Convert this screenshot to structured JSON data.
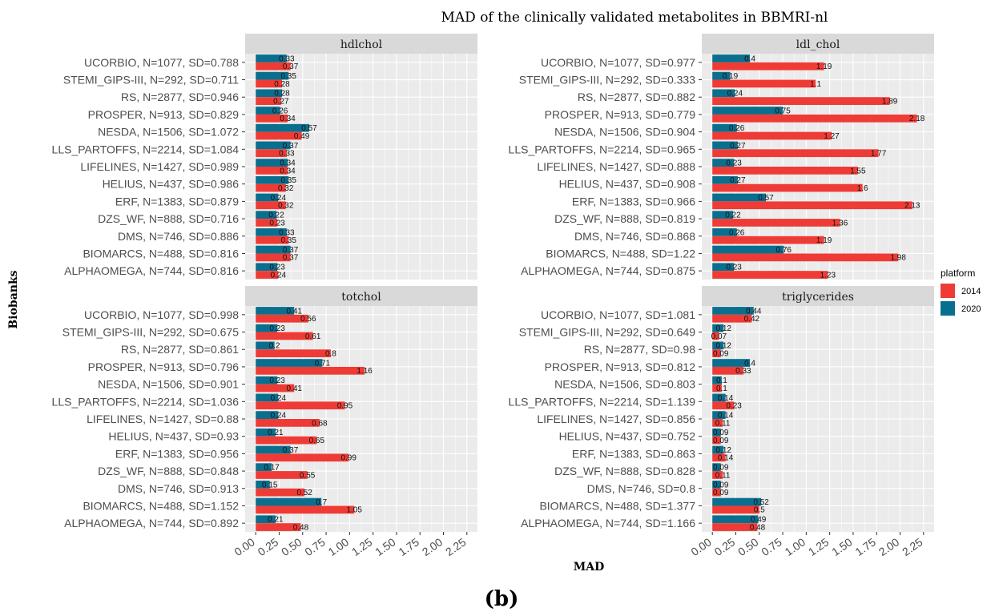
{
  "title": "MAD of the clinically validated metabolites in BBMRI-nl",
  "xlabel": "MAD",
  "ylabel": "Biobanks",
  "caption": "(b)",
  "legend": {
    "title": "platform",
    "items": [
      {
        "label": "2014",
        "color": "#ef3b36"
      },
      {
        "label": "2020",
        "color": "#0a6f8f"
      }
    ]
  },
  "colors": {
    "panel_bg": "#ebebeb",
    "strip_bg": "#d9d9d9",
    "grid": "#ffffff",
    "series_2014": "#ef3b36",
    "series_2020": "#0a6f8f"
  },
  "chart_data": [
    {
      "type": "bar",
      "title": "hdlchol",
      "xlim": [
        0,
        2.25
      ],
      "ticks": [
        "0.00",
        "0.25",
        "0.50",
        "0.75",
        "1.00",
        "1.25",
        "1.50",
        "1.75",
        "2.00",
        "2.25"
      ],
      "categories": [
        "UCORBIO, N=1077, SD=0.788",
        "STEMI_GIPS-III, N=292, SD=0.711",
        "RS, N=2877, SD=0.946",
        "PROSPER, N=913, SD=0.829",
        "NESDA, N=1506, SD=1.072",
        "LLS_PARTOFFS, N=2214, SD=1.084",
        "LIFELINES, N=1427, SD=0.989",
        "HELIUS, N=437, SD=0.986",
        "ERF, N=1383, SD=0.879",
        "DZS_WF, N=888, SD=0.716",
        "DMS, N=746, SD=0.886",
        "BIOMARCS, N=488, SD=0.816",
        "ALPHAOMEGA, N=744, SD=0.816"
      ],
      "series": [
        {
          "name": "2020",
          "values": [
            0.33,
            0.35,
            0.28,
            0.26,
            0.57,
            0.37,
            0.34,
            0.35,
            0.24,
            0.22,
            0.33,
            0.37,
            0.23
          ],
          "labels": [
            "0.33",
            "0.35",
            "0.28",
            "0.26",
            "0.57",
            "0.37",
            "0.34",
            "0.35",
            "0.24",
            "0.22",
            "0.33",
            "0.37",
            "0.23"
          ]
        },
        {
          "name": "2014",
          "values": [
            0.37,
            0.28,
            0.27,
            0.34,
            0.49,
            0.33,
            0.34,
            0.32,
            0.32,
            0.23,
            0.35,
            0.37,
            0.24
          ],
          "labels": [
            "0.37",
            "0.28",
            "0.27",
            "0.34",
            "0.49",
            "0.33",
            "0.34",
            "0.32",
            "0.32",
            "0.23",
            "0.35",
            "0.37",
            "0.24"
          ]
        }
      ]
    },
    {
      "type": "bar",
      "title": "ldl_chol",
      "xlim": [
        0,
        2.25
      ],
      "ticks": [
        "0.00",
        "0.25",
        "0.50",
        "0.75",
        "1.00",
        "1.25",
        "1.50",
        "1.75",
        "2.00",
        "2.25"
      ],
      "categories": [
        "UCORBIO, N=1077, SD=0.977",
        "STEMI_GIPS-III, N=292, SD=0.333",
        "RS, N=2877, SD=0.882",
        "PROSPER, N=913, SD=0.779",
        "NESDA, N=1506, SD=0.904",
        "LLS_PARTOFFS, N=2214, SD=0.965",
        "LIFELINES, N=1427, SD=0.888",
        "HELIUS, N=437, SD=0.908",
        "ERF, N=1383, SD=0.966",
        "DZS_WF, N=888, SD=0.819",
        "DMS, N=746, SD=0.868",
        "BIOMARCS, N=488, SD=1.22",
        "ALPHAOMEGA, N=744, SD=0.875"
      ],
      "series": [
        {
          "name": "2020",
          "values": [
            0.4,
            0.19,
            0.24,
            0.75,
            0.26,
            0.27,
            0.23,
            0.27,
            0.57,
            0.22,
            0.26,
            0.76,
            0.23
          ],
          "labels": [
            "0.4",
            "0.19",
            "0.24",
            "0.75",
            "0.26",
            "0.27",
            "0.23",
            "0.27",
            "0.57",
            "0.22",
            "0.26",
            "0.76",
            "0.23"
          ]
        },
        {
          "name": "2014",
          "values": [
            1.19,
            1.1,
            1.89,
            2.18,
            1.27,
            1.77,
            1.55,
            1.6,
            2.13,
            1.36,
            1.19,
            1.98,
            1.23
          ],
          "labels": [
            "1.19",
            "1.1",
            "1.89",
            "2.18",
            "1.27",
            "1.77",
            "1.55",
            "1.6",
            "2.13",
            "1.36",
            "1.19",
            "1.98",
            "1.23"
          ]
        }
      ]
    },
    {
      "type": "bar",
      "title": "totchol",
      "xlim": [
        0,
        2.25
      ],
      "ticks": [
        "0.00",
        "0.25",
        "0.50",
        "0.75",
        "1.00",
        "1.25",
        "1.50",
        "1.75",
        "2.00",
        "2.25"
      ],
      "categories": [
        "UCORBIO, N=1077, SD=0.998",
        "STEMI_GIPS-III, N=292, SD=0.675",
        "RS, N=2877, SD=0.861",
        "PROSPER, N=913, SD=0.796",
        "NESDA, N=1506, SD=0.901",
        "LLS_PARTOFFS, N=2214, SD=1.036",
        "LIFELINES, N=1427, SD=0.88",
        "HELIUS, N=437, SD=0.93",
        "ERF, N=1383, SD=0.956",
        "DZS_WF, N=888, SD=0.848",
        "DMS, N=746, SD=0.913",
        "BIOMARCS, N=488, SD=1.152",
        "ALPHAOMEGA, N=744, SD=0.892"
      ],
      "series": [
        {
          "name": "2020",
          "values": [
            0.41,
            0.23,
            0.2,
            0.71,
            0.23,
            0.24,
            0.24,
            0.21,
            0.37,
            0.17,
            0.15,
            0.7,
            0.21
          ],
          "labels": [
            "0.41",
            "0.23",
            "0.2",
            "0.71",
            "0.23",
            "0.24",
            "0.24",
            "0.21",
            "0.37",
            "0.17",
            "0.15",
            "0.7",
            "0.21"
          ]
        },
        {
          "name": "2014",
          "values": [
            0.56,
            0.61,
            0.8,
            1.16,
            0.41,
            0.95,
            0.68,
            0.65,
            0.99,
            0.55,
            0.52,
            1.05,
            0.48
          ],
          "labels": [
            "0.56",
            "0.61",
            "0.8",
            "1.16",
            "0.41",
            "0.95",
            "0.68",
            "0.65",
            "0.99",
            "0.55",
            "0.52",
            "1.05",
            "0.48"
          ]
        }
      ]
    },
    {
      "type": "bar",
      "title": "triglycerides",
      "xlim": [
        0,
        2.25
      ],
      "ticks": [
        "0.00",
        "0.25",
        "0.50",
        "0.75",
        "1.00",
        "1.25",
        "1.50",
        "1.75",
        "2.00",
        "2.25"
      ],
      "categories": [
        "UCORBIO, N=1077, SD=1.081",
        "STEMI_GIPS-III, N=292, SD=0.649",
        "RS, N=2877, SD=0.98",
        "PROSPER, N=913, SD=0.812",
        "NESDA, N=1506, SD=0.803",
        "LLS_PARTOFFS, N=2214, SD=1.139",
        "LIFELINES, N=1427, SD=0.856",
        "HELIUS, N=437, SD=0.752",
        "ERF, N=1383, SD=0.863",
        "DZS_WF, N=888, SD=0.828",
        "DMS, N=746, SD=0.8",
        "BIOMARCS, N=488, SD=1.377",
        "ALPHAOMEGA, N=744, SD=1.166"
      ],
      "series": [
        {
          "name": "2020",
          "values": [
            0.44,
            0.12,
            0.12,
            0.4,
            0.1,
            0.14,
            0.14,
            0.09,
            0.12,
            0.09,
            0.09,
            0.52,
            0.49
          ],
          "labels": [
            "0.44",
            "0.12",
            "0.12",
            "0.4",
            "0.1",
            "0.14",
            "0.14",
            "0.09",
            "0.12",
            "0.09",
            "0.09",
            "0.52",
            "0.49"
          ]
        },
        {
          "name": "2014",
          "values": [
            0.42,
            0.07,
            0.09,
            0.33,
            0.1,
            0.23,
            0.11,
            0.09,
            0.14,
            0.11,
            0.09,
            0.5,
            0.48
          ],
          "labels": [
            "0.42",
            "0.07",
            "0.09",
            "0.33",
            "0.1",
            "0.23",
            "0.11",
            "0.09",
            "0.14",
            "0.11",
            "0.09",
            "0.5",
            "0.48"
          ]
        }
      ]
    }
  ]
}
